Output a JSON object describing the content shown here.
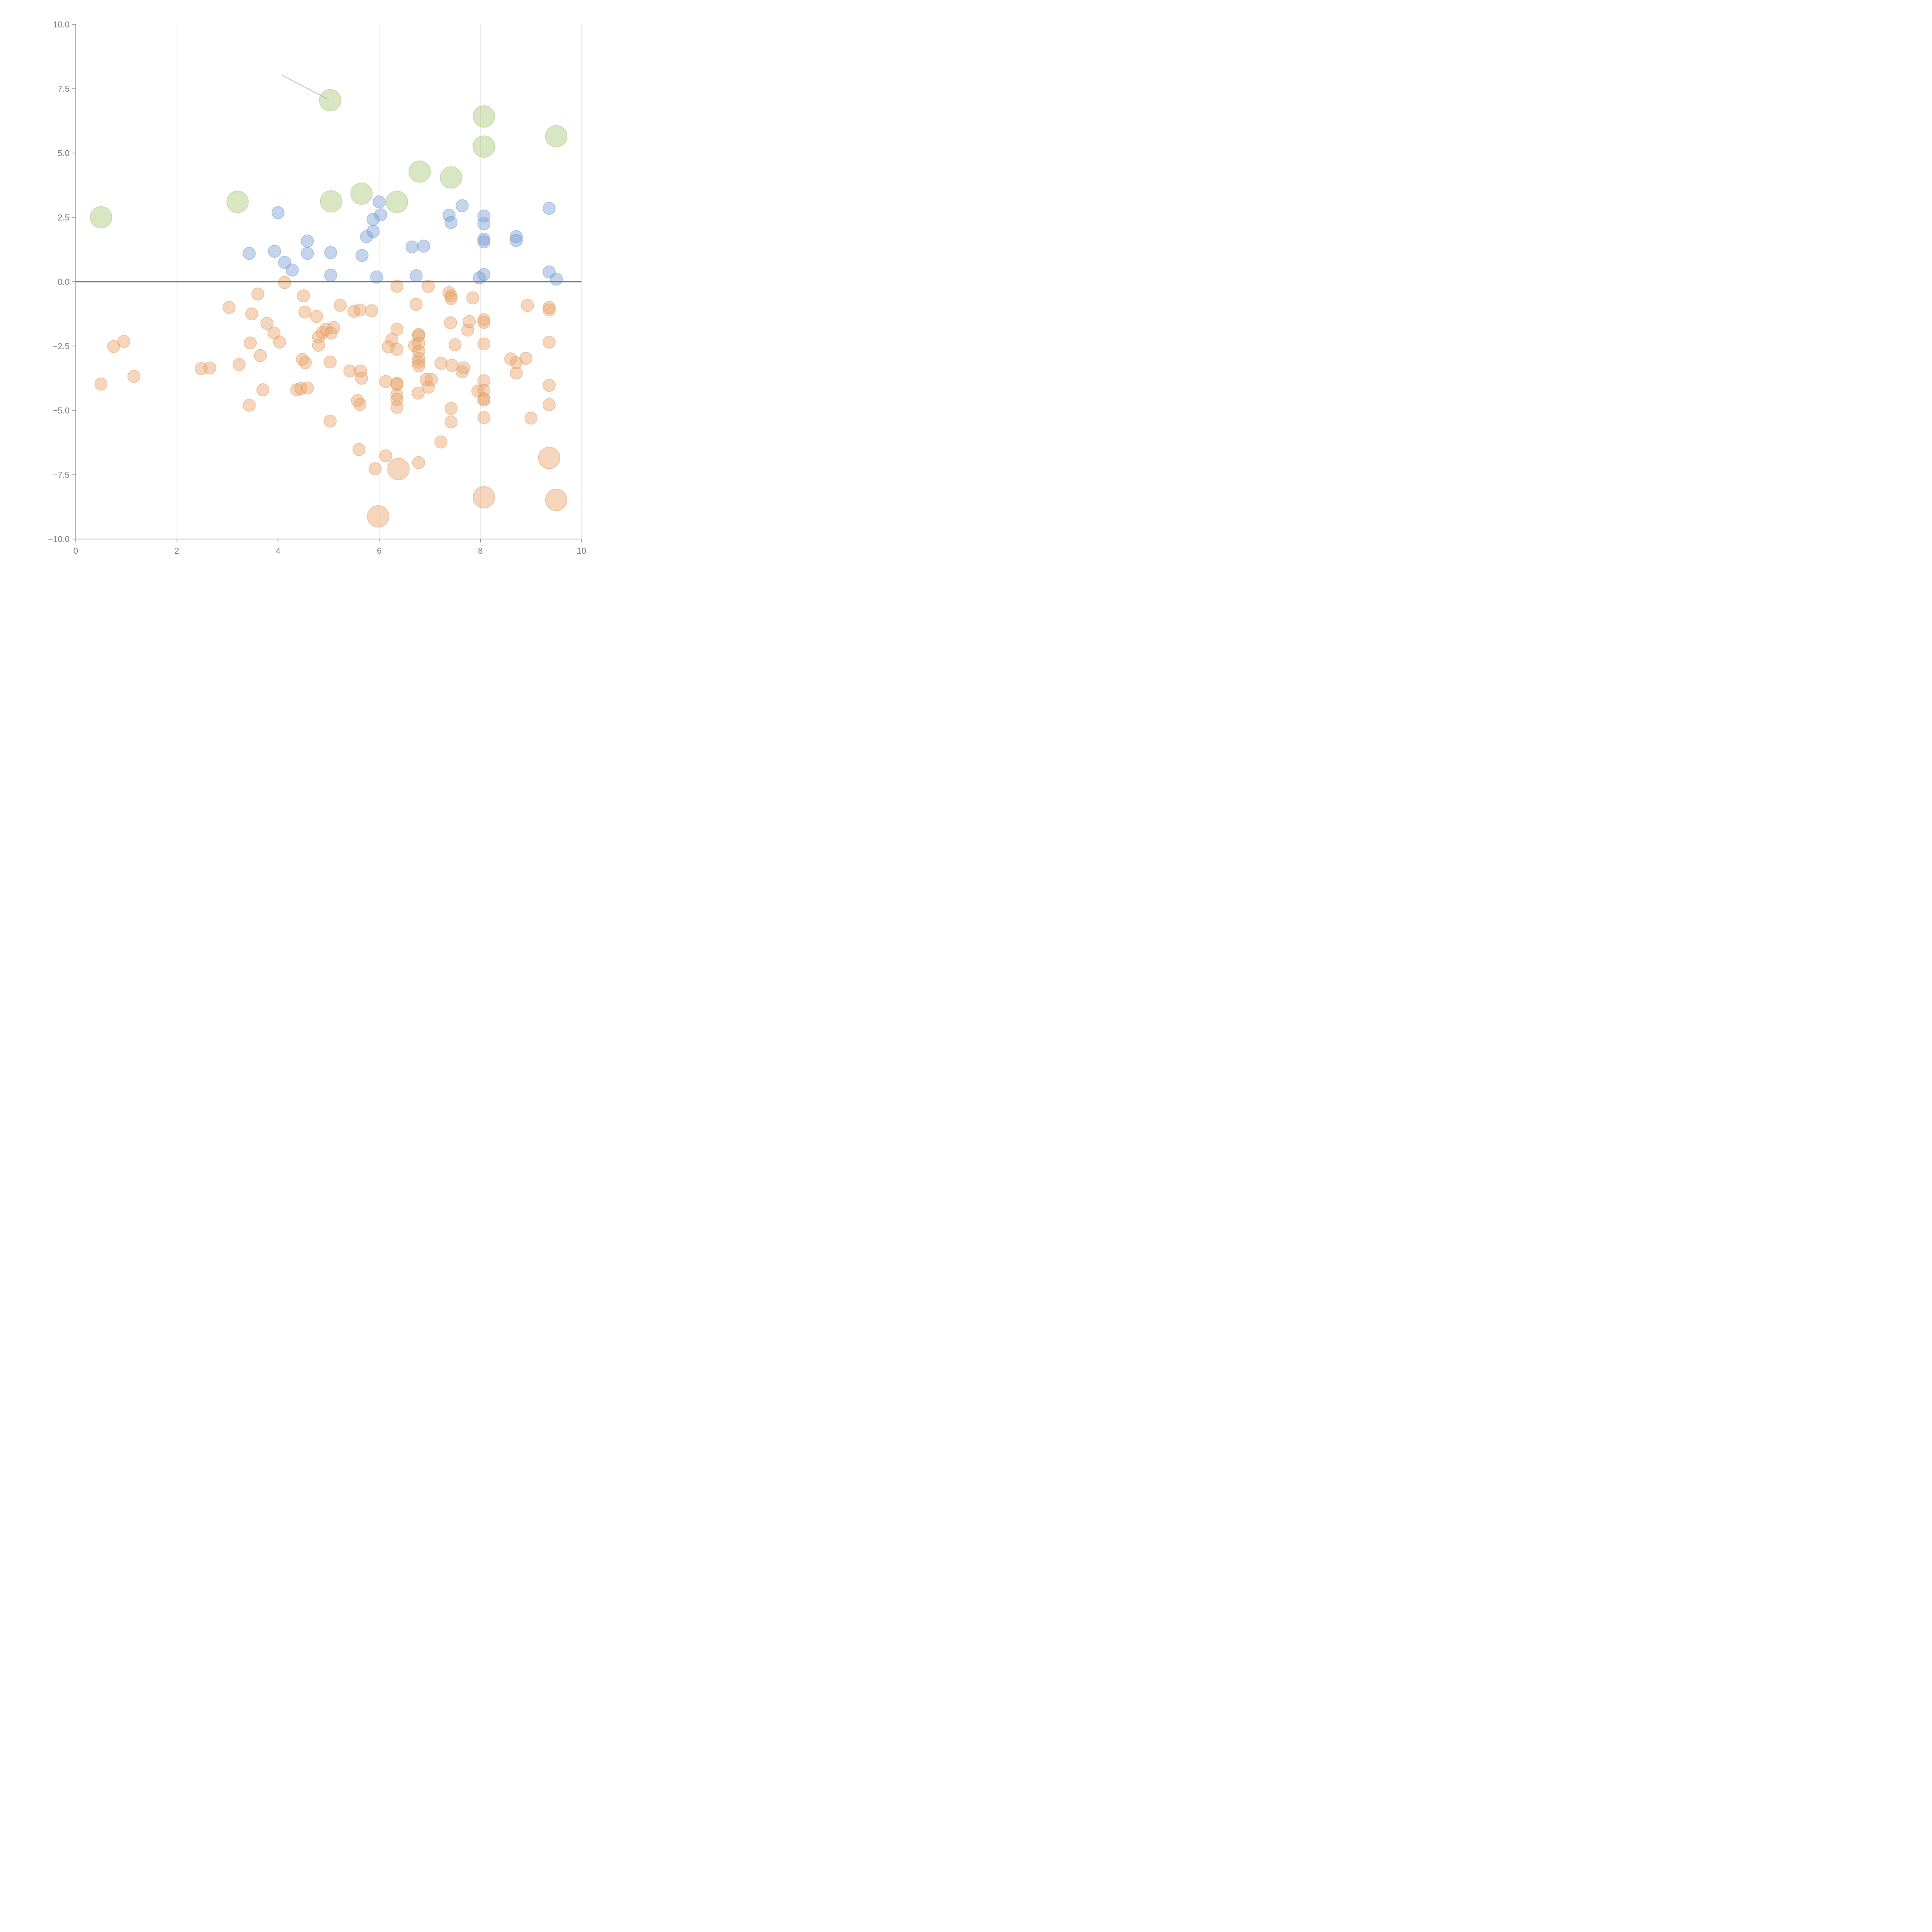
{
  "chart_data": {
    "type": "scatter",
    "title": "",
    "xlabel": "",
    "ylabel": "",
    "xlim": [
      0,
      10
    ],
    "ylim": [
      -10,
      10
    ],
    "x_ticks": [
      0,
      2,
      4,
      6,
      8,
      10
    ],
    "y_ticks": [
      -10,
      -7.5,
      -5,
      -2.5,
      0,
      2.5,
      5,
      7.5,
      10
    ],
    "x_tick_labels": [
      "0",
      "2",
      "4",
      "6",
      "8",
      "10"
    ],
    "y_tick_labels": [
      "−10.0",
      "−7.5",
      "−5.0",
      "−2.5",
      "0.0",
      "2.5",
      "5.0",
      "7.5",
      "10.0"
    ],
    "grid": {
      "vertical": true,
      "horizontal": false
    },
    "zero_line": 0,
    "series": [
      {
        "name": "green",
        "color": "#a9c77a",
        "stroke": "#9cbd6c",
        "size": "large",
        "points": [
          [
            0.5,
            2.5
          ],
          [
            3.2,
            3.1
          ],
          [
            5.03,
            7.05
          ],
          [
            5.05,
            3.12
          ],
          [
            5.65,
            3.42
          ],
          [
            6.35,
            3.1
          ],
          [
            6.8,
            4.28
          ],
          [
            7.42,
            4.05
          ],
          [
            8.07,
            6.42
          ],
          [
            8.07,
            5.25
          ],
          [
            9.5,
            5.65
          ]
        ]
      },
      {
        "name": "blue",
        "color": "#7b9fd4",
        "stroke": "#6b8fc6",
        "size": "small",
        "points": [
          [
            3.43,
            1.1
          ],
          [
            3.93,
            1.18
          ],
          [
            4.0,
            2.68
          ],
          [
            4.13,
            0.75
          ],
          [
            4.28,
            0.45
          ],
          [
            4.58,
            1.58
          ],
          [
            4.58,
            1.1
          ],
          [
            5.04,
            0.25
          ],
          [
            5.04,
            1.13
          ],
          [
            5.66,
            1.02
          ],
          [
            5.75,
            1.75
          ],
          [
            5.88,
            2.42
          ],
          [
            5.88,
            1.95
          ],
          [
            5.95,
            0.18
          ],
          [
            6.0,
            3.1
          ],
          [
            6.03,
            2.6
          ],
          [
            6.65,
            1.35
          ],
          [
            6.73,
            0.23
          ],
          [
            6.88,
            1.38
          ],
          [
            7.38,
            2.58
          ],
          [
            7.42,
            2.3
          ],
          [
            7.64,
            2.95
          ],
          [
            7.98,
            0.15
          ],
          [
            8.07,
            2.55
          ],
          [
            8.07,
            2.25
          ],
          [
            8.07,
            1.65
          ],
          [
            8.07,
            1.55
          ],
          [
            8.07,
            0.28
          ],
          [
            8.71,
            1.75
          ],
          [
            8.71,
            1.6
          ],
          [
            9.36,
            2.85
          ],
          [
            9.36,
            0.38
          ],
          [
            9.5,
            0.1
          ]
        ]
      },
      {
        "name": "orange",
        "color": "#e8a46b",
        "stroke": "#dc935a",
        "size": "mixed",
        "points": [
          [
            0.5,
            -3.98,
            0
          ],
          [
            0.75,
            -2.52,
            0
          ],
          [
            0.95,
            -2.32,
            0
          ],
          [
            1.15,
            -3.68,
            0
          ],
          [
            2.48,
            -3.38,
            0
          ],
          [
            2.65,
            -3.35,
            0
          ],
          [
            3.03,
            -1.0,
            0
          ],
          [
            3.23,
            -3.22,
            0
          ],
          [
            3.43,
            -4.8,
            0
          ],
          [
            3.45,
            -2.38,
            0
          ],
          [
            3.48,
            -1.25,
            0
          ],
          [
            3.6,
            -0.48,
            0
          ],
          [
            3.65,
            -2.87,
            0
          ],
          [
            3.7,
            -4.2,
            0
          ],
          [
            3.78,
            -1.62,
            0
          ],
          [
            3.92,
            -2.0,
            0
          ],
          [
            4.03,
            -2.35,
            0
          ],
          [
            4.13,
            -0.03,
            0
          ],
          [
            4.37,
            -4.2,
            0
          ],
          [
            4.45,
            -4.15,
            0
          ],
          [
            4.48,
            -3.02,
            0
          ],
          [
            4.5,
            -0.55,
            0
          ],
          [
            4.53,
            -1.18,
            0
          ],
          [
            4.54,
            -3.15,
            0
          ],
          [
            4.58,
            -4.13,
            0
          ],
          [
            4.76,
            -1.35,
            0
          ],
          [
            4.8,
            -2.15,
            0
          ],
          [
            4.8,
            -2.47,
            0
          ],
          [
            4.88,
            -1.98,
            0
          ],
          [
            4.95,
            -1.85,
            0
          ],
          [
            5.03,
            -3.12,
            0
          ],
          [
            5.03,
            -5.42,
            0
          ],
          [
            5.05,
            -2.0,
            0
          ],
          [
            5.1,
            -1.78,
            0
          ],
          [
            5.23,
            -0.92,
            0
          ],
          [
            5.42,
            -3.47,
            0
          ],
          [
            5.5,
            -1.15,
            0
          ],
          [
            5.57,
            -4.62,
            0
          ],
          [
            5.6,
            -6.52,
            0
          ],
          [
            5.62,
            -1.1,
            0
          ],
          [
            5.62,
            -4.77,
            0
          ],
          [
            5.63,
            -3.47,
            0
          ],
          [
            5.65,
            -3.75,
            0
          ],
          [
            5.85,
            -1.13,
            0
          ],
          [
            5.92,
            -7.27,
            0
          ],
          [
            5.98,
            -9.12,
            1
          ],
          [
            6.13,
            -3.88,
            0
          ],
          [
            6.13,
            -6.77,
            0
          ],
          [
            6.18,
            -2.53,
            0
          ],
          [
            6.25,
            -2.25,
            0
          ],
          [
            6.35,
            -0.18,
            0
          ],
          [
            6.35,
            -1.85,
            0
          ],
          [
            6.35,
            -2.63,
            0
          ],
          [
            6.35,
            -3.95,
            0
          ],
          [
            6.35,
            -4.0,
            0
          ],
          [
            6.35,
            -4.4,
            0
          ],
          [
            6.35,
            -4.58,
            0
          ],
          [
            6.35,
            -4.88,
            0
          ],
          [
            6.38,
            -7.28,
            1
          ],
          [
            6.7,
            -2.48,
            0
          ],
          [
            6.73,
            -0.88,
            0
          ],
          [
            6.77,
            -4.33,
            0
          ],
          [
            6.78,
            -7.03,
            0
          ],
          [
            6.78,
            -2.05,
            0
          ],
          [
            6.78,
            -2.1,
            0
          ],
          [
            6.78,
            -2.4,
            0
          ],
          [
            6.78,
            -2.7,
            0
          ],
          [
            6.78,
            -2.98,
            0
          ],
          [
            6.78,
            -3.13,
            0
          ],
          [
            6.78,
            -3.27,
            0
          ],
          [
            6.93,
            -3.8,
            0
          ],
          [
            6.97,
            -4.1,
            0
          ],
          [
            6.97,
            -0.18,
            0
          ],
          [
            7.03,
            -3.8,
            0
          ],
          [
            7.22,
            -3.17,
            0
          ],
          [
            7.22,
            -6.23,
            0
          ],
          [
            7.38,
            -0.43,
            0
          ],
          [
            7.41,
            -1.6,
            0
          ],
          [
            7.42,
            -0.55,
            0
          ],
          [
            7.42,
            -0.65,
            0
          ],
          [
            7.42,
            -4.93,
            0
          ],
          [
            7.42,
            -5.45,
            0
          ],
          [
            7.44,
            -3.25,
            0
          ],
          [
            7.5,
            -2.45,
            0
          ],
          [
            7.64,
            -3.5,
            0
          ],
          [
            7.67,
            -3.35,
            0
          ],
          [
            7.75,
            -1.88,
            0
          ],
          [
            7.78,
            -1.55,
            0
          ],
          [
            7.85,
            -0.63,
            0
          ],
          [
            7.95,
            -4.25,
            0
          ],
          [
            8.07,
            -1.48,
            0
          ],
          [
            8.07,
            -1.58,
            0
          ],
          [
            8.07,
            -2.42,
            0
          ],
          [
            8.07,
            -3.85,
            0
          ],
          [
            8.07,
            -4.22,
            0
          ],
          [
            8.07,
            -4.55,
            0
          ],
          [
            8.07,
            -4.6,
            0
          ],
          [
            8.07,
            -5.28,
            0
          ],
          [
            8.07,
            -8.38,
            1
          ],
          [
            8.6,
            -3.0,
            0
          ],
          [
            8.71,
            -3.15,
            0
          ],
          [
            8.71,
            -3.55,
            0
          ],
          [
            8.9,
            -2.98,
            0
          ],
          [
            8.93,
            -0.92,
            0
          ],
          [
            9.0,
            -5.3,
            0
          ],
          [
            9.36,
            -1.0,
            0
          ],
          [
            9.36,
            -1.1,
            0
          ],
          [
            9.36,
            -2.35,
            0
          ],
          [
            9.36,
            -4.03,
            0
          ],
          [
            9.36,
            -4.78,
            0
          ],
          [
            9.36,
            -6.85,
            1
          ],
          [
            9.5,
            -8.48,
            1
          ]
        ]
      }
    ],
    "annotation_line": [
      [
        4.07,
        8.03
      ],
      [
        5.0,
        7.08
      ]
    ]
  }
}
